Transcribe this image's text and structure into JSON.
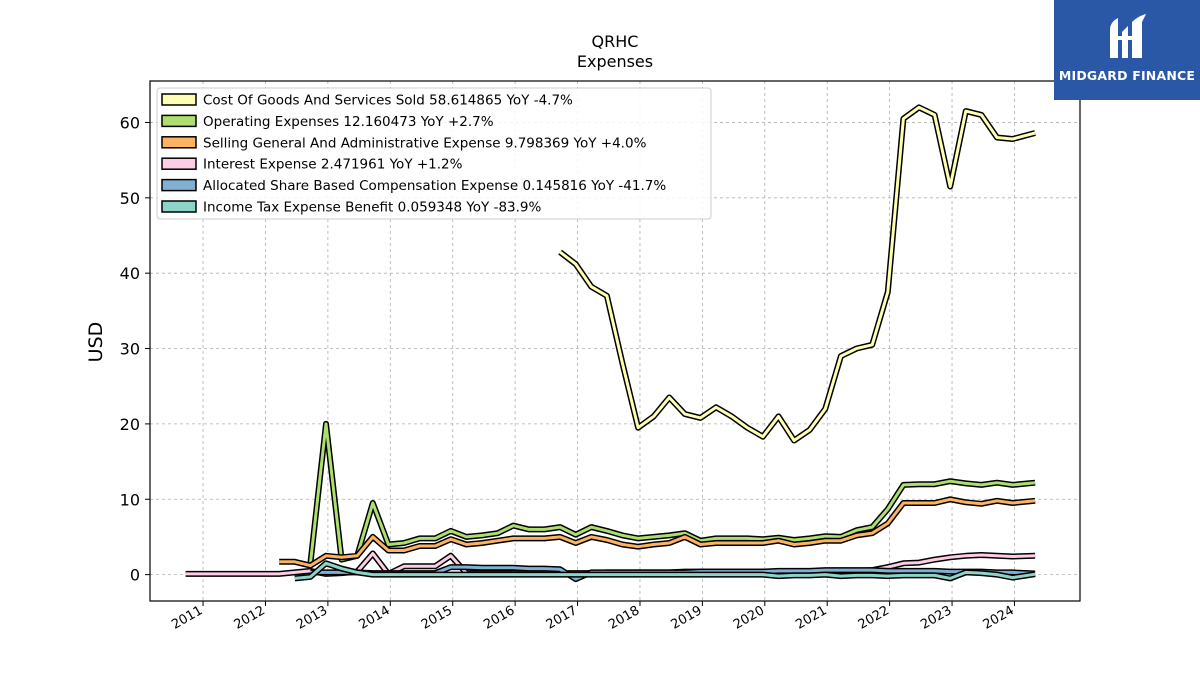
{
  "brand": {
    "name": "MIDGARD FINANCE",
    "bg_color": "#2a57a6"
  },
  "chart_data": {
    "type": "line",
    "title": "QRHC",
    "subtitle": "Expenses",
    "xlabel": "",
    "ylabel": "USD",
    "xlim": [
      2010.15,
      2025.05
    ],
    "ylim": [
      -3.5,
      65.5
    ],
    "x_ticks": [
      "2011",
      "2012",
      "2013",
      "2014",
      "2015",
      "2016",
      "2017",
      "2018",
      "2019",
      "2020",
      "2021",
      "2022",
      "2023",
      "2024"
    ],
    "y_ticks": [
      0,
      10,
      20,
      30,
      40,
      50,
      60
    ],
    "grid": true,
    "legend_position": "top-left",
    "series": [
      {
        "name": "Cost Of Goods And Services Sold  58.614865 YoY -4.7%",
        "color": "#ffffb3",
        "x": [
          2016.72,
          2016.97,
          2017.22,
          2017.47,
          2017.72,
          2017.97,
          2018.22,
          2018.47,
          2018.72,
          2018.97,
          2019.22,
          2019.47,
          2019.72,
          2019.97,
          2020.22,
          2020.47,
          2020.72,
          2020.97,
          2021.22,
          2021.47,
          2021.72,
          2021.97,
          2022.22,
          2022.47,
          2022.72,
          2022.97,
          2023.22,
          2023.47,
          2023.72,
          2023.97,
          2024.33
        ],
        "y": [
          42.8,
          41.2,
          38.2,
          37.0,
          28.0,
          19.5,
          21.0,
          23.5,
          21.3,
          20.8,
          22.2,
          21.0,
          19.5,
          18.3,
          21.0,
          17.8,
          19.2,
          22.0,
          29.0,
          30.0,
          30.5,
          37.5,
          60.5,
          62.0,
          61.0,
          51.5,
          61.5,
          61.0,
          58.0,
          57.8,
          58.6
        ]
      },
      {
        "name": "Operating Expenses  12.160473 YoY +2.7%",
        "color": "#addf6e",
        "x": [
          2012.72,
          2012.97,
          2013.22,
          2013.47,
          2013.72,
          2013.97,
          2014.22,
          2014.47,
          2014.72,
          2014.97,
          2015.22,
          2015.47,
          2015.72,
          2015.97,
          2016.22,
          2016.47,
          2016.72,
          2016.97,
          2017.22,
          2017.47,
          2017.72,
          2017.97,
          2018.22,
          2018.47,
          2018.72,
          2018.97,
          2019.22,
          2019.47,
          2019.72,
          2019.97,
          2020.22,
          2020.47,
          2020.72,
          2020.97,
          2021.22,
          2021.47,
          2021.72,
          2021.97,
          2022.22,
          2022.47,
          2022.72,
          2022.97,
          2023.22,
          2023.47,
          2023.72,
          2023.97,
          2024.33
        ],
        "y": [
          1.5,
          20.0,
          2.0,
          2.5,
          9.5,
          4.0,
          4.2,
          4.8,
          4.8,
          5.8,
          5.0,
          5.2,
          5.5,
          6.5,
          6.0,
          6.0,
          6.3,
          5.3,
          6.3,
          5.8,
          5.2,
          4.8,
          5.0,
          5.2,
          5.5,
          4.5,
          4.8,
          4.8,
          4.8,
          4.7,
          4.9,
          4.6,
          4.8,
          5.1,
          5.0,
          5.9,
          6.3,
          8.7,
          11.9,
          12.0,
          12.0,
          12.4,
          12.1,
          11.9,
          12.2,
          11.9,
          12.2
        ]
      },
      {
        "name": "Selling General And Administrative Expense  9.798369 YoY +4.0%",
        "color": "#fdb462",
        "x": [
          2012.22,
          2012.47,
          2012.72,
          2012.97,
          2013.22,
          2013.47,
          2013.72,
          2013.97,
          2014.22,
          2014.47,
          2014.72,
          2014.97,
          2015.22,
          2015.47,
          2015.72,
          2015.97,
          2016.22,
          2016.47,
          2016.72,
          2016.97,
          2017.22,
          2017.47,
          2017.72,
          2017.97,
          2018.22,
          2018.47,
          2018.72,
          2018.97,
          2019.22,
          2019.47,
          2019.72,
          2019.97,
          2020.22,
          2020.47,
          2020.72,
          2020.97,
          2021.22,
          2021.47,
          2021.72,
          2021.97,
          2022.22,
          2022.47,
          2022.72,
          2022.97,
          2023.22,
          2023.47,
          2023.72,
          2023.97,
          2024.33
        ],
        "y": [
          1.7,
          1.7,
          1.2,
          2.5,
          2.3,
          2.5,
          5.0,
          3.2,
          3.2,
          3.8,
          3.8,
          4.7,
          4.0,
          4.2,
          4.5,
          4.8,
          4.8,
          4.8,
          5.0,
          4.2,
          5.0,
          4.6,
          4.0,
          3.7,
          4.0,
          4.2,
          5.0,
          4.0,
          4.2,
          4.2,
          4.2,
          4.2,
          4.5,
          4.0,
          4.2,
          4.5,
          4.5,
          5.2,
          5.5,
          6.8,
          9.5,
          9.5,
          9.5,
          10.0,
          9.6,
          9.4,
          9.8,
          9.5,
          9.8
        ]
      },
      {
        "name": "Interest Expense  2.471961 YoY +1.2%",
        "color": "#fccde5",
        "x": [
          2010.72,
          2010.97,
          2011.22,
          2011.47,
          2011.72,
          2011.97,
          2012.22,
          2012.47,
          2012.72,
          2012.97,
          2013.22,
          2013.47,
          2013.72,
          2013.97,
          2014.22,
          2014.47,
          2014.72,
          2014.97,
          2015.22,
          2015.47,
          2015.72,
          2015.97,
          2016.22,
          2016.47,
          2016.72,
          2016.97,
          2017.22,
          2017.47,
          2017.72,
          2017.97,
          2018.22,
          2018.47,
          2018.72,
          2018.97,
          2019.22,
          2019.47,
          2019.72,
          2019.97,
          2020.22,
          2020.47,
          2020.72,
          2020.97,
          2021.22,
          2021.47,
          2021.72,
          2021.97,
          2022.22,
          2022.47,
          2022.72,
          2022.97,
          2023.22,
          2023.47,
          2023.72,
          2023.97,
          2024.33
        ],
        "y": [
          0.1,
          0.1,
          0.1,
          0.1,
          0.1,
          0.1,
          0.1,
          0.3,
          0.5,
          0.1,
          0.2,
          0.4,
          2.8,
          0.1,
          1.1,
          1.1,
          1.1,
          2.5,
          0.2,
          0.2,
          0.2,
          0.2,
          0.2,
          0.2,
          0.2,
          0.2,
          0.2,
          0.3,
          0.3,
          0.3,
          0.3,
          0.3,
          0.4,
          0.4,
          0.4,
          0.4,
          0.4,
          0.4,
          0.4,
          0.4,
          0.4,
          0.4,
          0.5,
          0.5,
          0.6,
          1.0,
          1.5,
          1.6,
          2.0,
          2.3,
          2.5,
          2.6,
          2.5,
          2.4,
          2.5
        ]
      },
      {
        "name": "Allocated Share Based Compensation Expense  0.145816 YoY -41.7%",
        "color": "#80b1d3",
        "x": [
          2012.72,
          2012.97,
          2013.22,
          2013.47,
          2013.72,
          2013.97,
          2014.22,
          2014.47,
          2014.72,
          2014.97,
          2015.22,
          2015.47,
          2015.72,
          2015.97,
          2016.22,
          2016.47,
          2016.72,
          2016.97,
          2017.22,
          2017.47,
          2017.72,
          2017.97,
          2018.22,
          2018.47,
          2018.72,
          2018.97,
          2019.22,
          2019.47,
          2019.72,
          2019.97,
          2020.22,
          2020.47,
          2020.72,
          2020.97,
          2021.22,
          2021.47,
          2021.72,
          2021.97,
          2022.22,
          2022.47,
          2022.72,
          2022.97,
          2023.22,
          2023.47,
          2023.72,
          2023.97,
          2024.33
        ],
        "y": [
          0.3,
          0.3,
          0.3,
          0.3,
          0.2,
          0.2,
          0.2,
          0.2,
          0.2,
          1.0,
          1.0,
          0.9,
          0.9,
          0.9,
          0.8,
          0.8,
          0.7,
          -0.6,
          0.3,
          0.3,
          0.3,
          0.3,
          0.3,
          0.3,
          0.3,
          0.4,
          0.4,
          0.4,
          0.4,
          0.4,
          0.5,
          0.5,
          0.5,
          0.6,
          0.6,
          0.6,
          0.6,
          0.5,
          0.5,
          0.5,
          0.5,
          0.4,
          0.4,
          0.4,
          0.3,
          0.3,
          0.15
        ]
      },
      {
        "name": "Income Tax Expense Benefit  0.059348 YoY -83.9%",
        "color": "#8dd3c7",
        "x": [
          2012.47,
          2012.72,
          2012.97,
          2013.22,
          2013.47,
          2013.72,
          2013.97,
          2014.22,
          2014.47,
          2014.72,
          2014.97,
          2015.22,
          2015.47,
          2015.72,
          2015.97,
          2016.22,
          2016.47,
          2016.72,
          2016.97,
          2017.22,
          2017.47,
          2017.72,
          2017.97,
          2018.22,
          2018.47,
          2018.72,
          2018.97,
          2019.22,
          2019.47,
          2019.72,
          2019.97,
          2020.22,
          2020.47,
          2020.72,
          2020.97,
          2021.22,
          2021.47,
          2021.72,
          2021.97,
          2022.22,
          2022.47,
          2022.72,
          2022.97,
          2023.22,
          2023.47,
          2023.72,
          2023.97,
          2024.33
        ],
        "y": [
          -0.5,
          -0.3,
          1.5,
          0.8,
          0.3,
          0.0,
          0.0,
          0.0,
          0.0,
          0.0,
          0.0,
          0.0,
          0.0,
          0.0,
          0.0,
          0.0,
          0.0,
          0.0,
          0.0,
          0.0,
          0.0,
          0.0,
          0.0,
          0.0,
          0.0,
          0.0,
          0.0,
          0.0,
          0.0,
          0.0,
          0.0,
          -0.2,
          -0.1,
          -0.1,
          0.0,
          -0.2,
          -0.1,
          -0.1,
          -0.2,
          -0.1,
          -0.1,
          -0.1,
          -0.5,
          0.3,
          0.2,
          0.0,
          -0.4,
          0.06
        ]
      }
    ]
  }
}
